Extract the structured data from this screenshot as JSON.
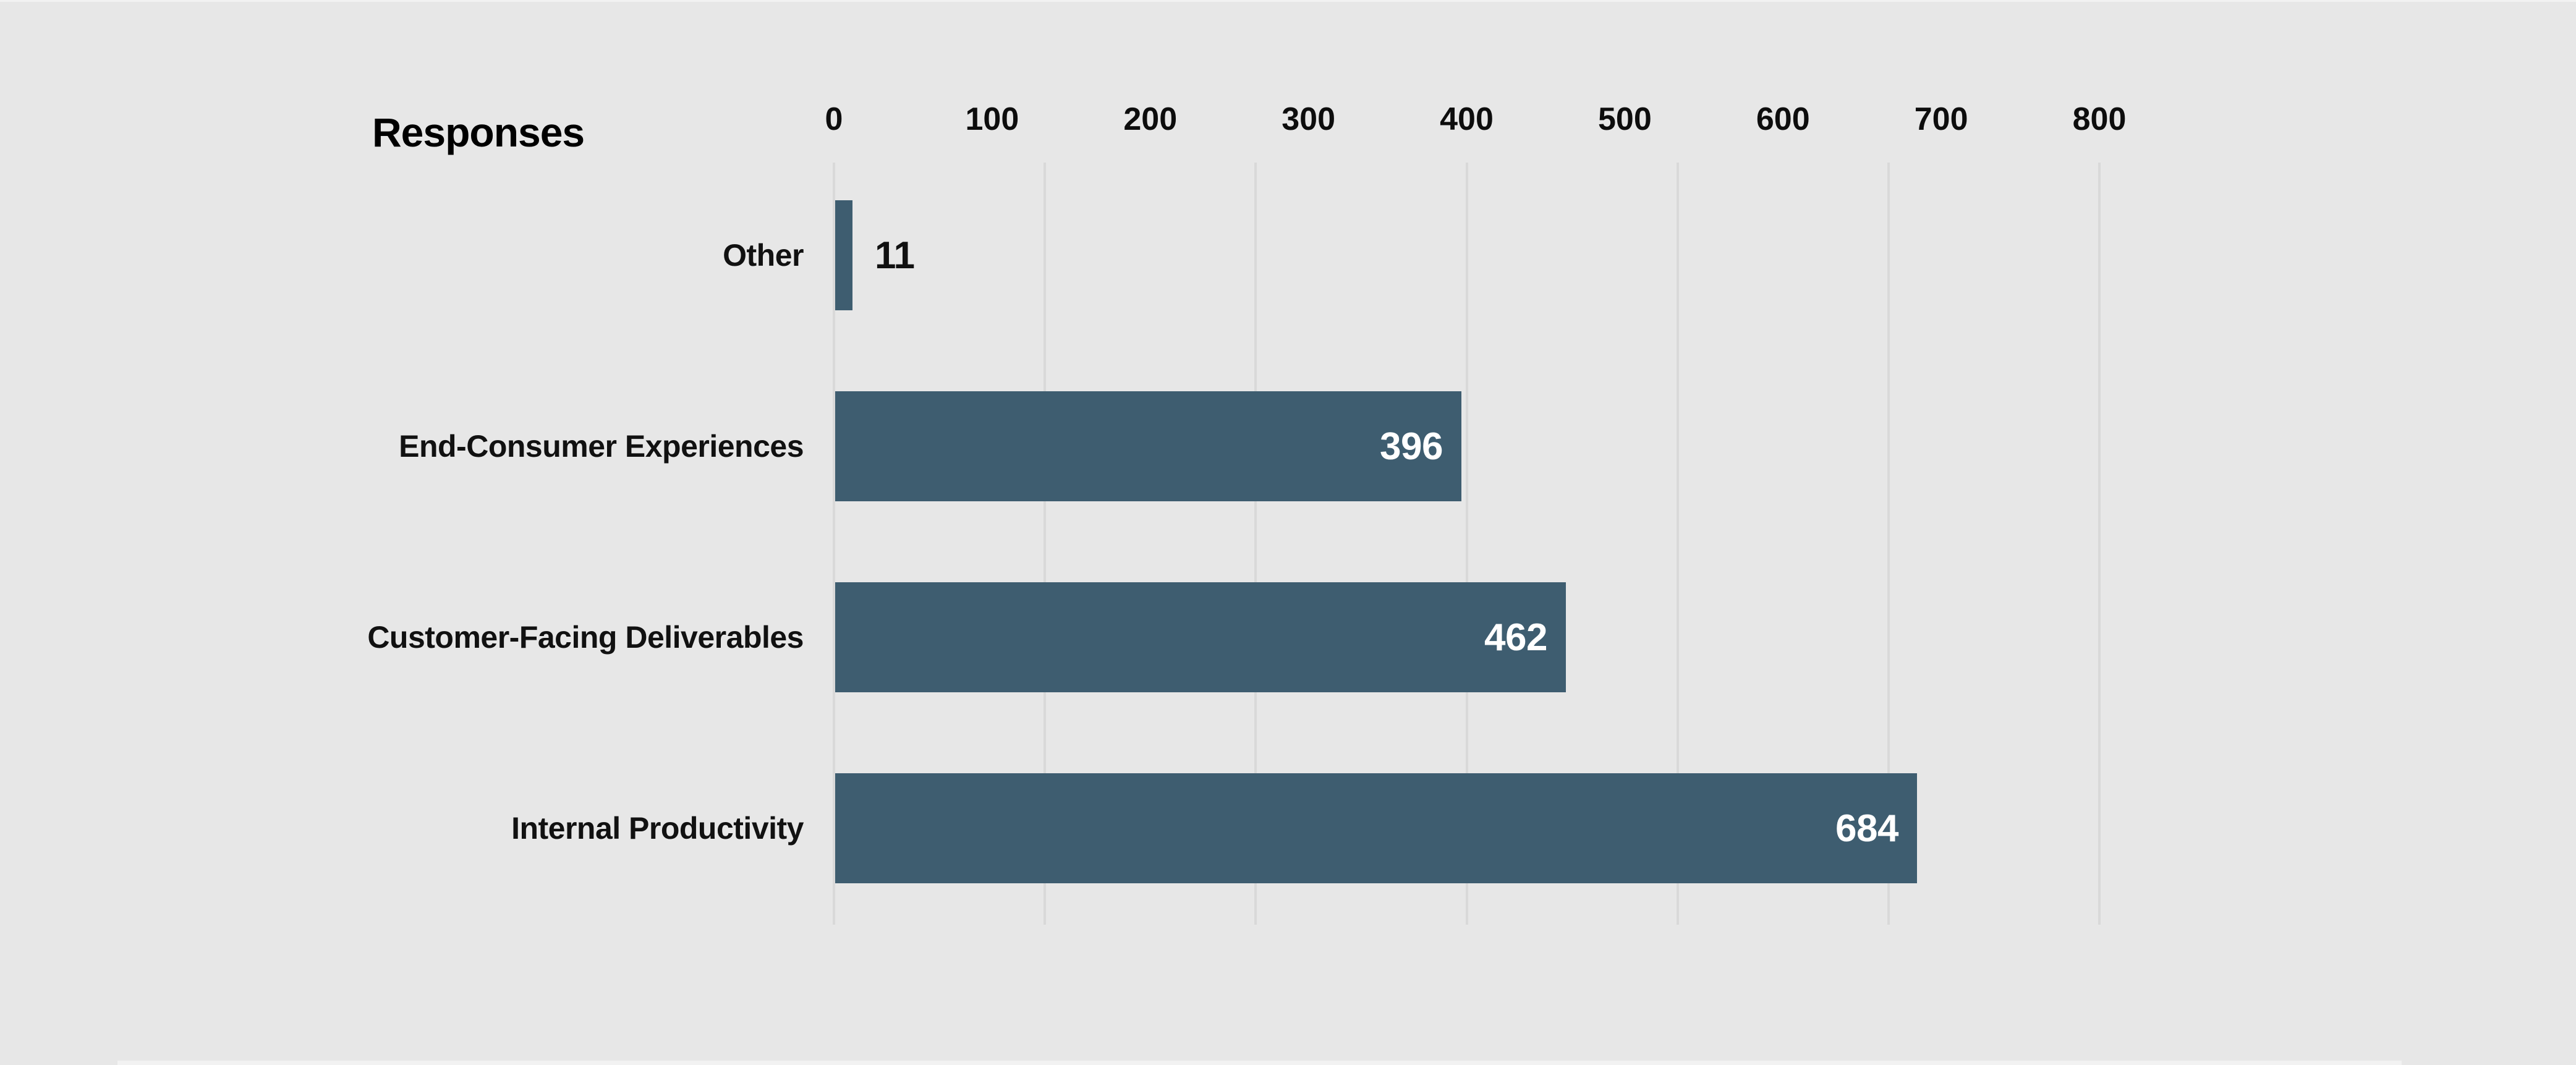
{
  "chart_data": {
    "type": "bar",
    "orientation": "horizontal",
    "title": "Responses",
    "categories": [
      "Other",
      "End-Consumer Experiences",
      "Customer-Facing Deliverables",
      "Internal Productivity"
    ],
    "values": [
      11,
      396,
      462,
      684
    ],
    "value_labels": [
      "11",
      "396",
      "462",
      "684"
    ],
    "xlim": [
      0,
      800
    ],
    "x_ticks": [
      "0",
      "100",
      "200",
      "300",
      "400",
      "500",
      "600",
      "700",
      "800"
    ],
    "tick_label_position": "top",
    "grid": "vertical",
    "gridline_count": 7,
    "legend": "none",
    "colors": {
      "background": "#e7e7e7",
      "bar": "#3e5d70",
      "gridline": "#d9d9d9",
      "title_text": "#000000",
      "axis_text": "#0d0d0d",
      "category_text": "#111111",
      "value_inside_text": "#ffffff",
      "value_outside_text": "#111111"
    }
  }
}
